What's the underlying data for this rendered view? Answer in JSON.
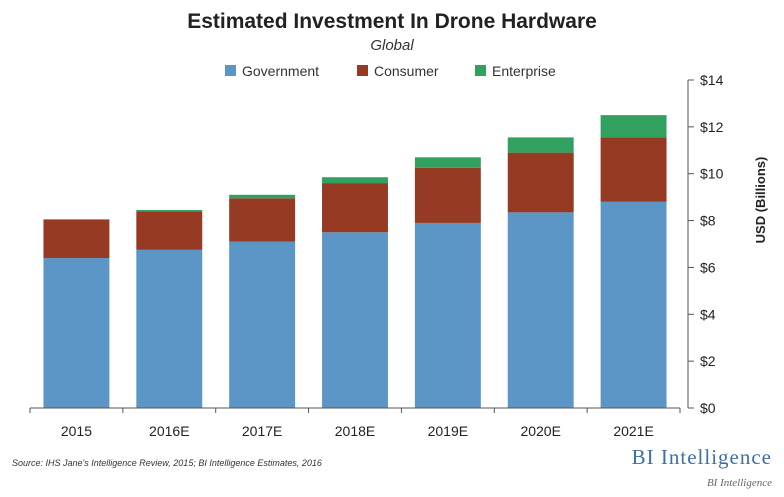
{
  "chart_data": {
    "type": "bar",
    "stacked": true,
    "title": "Estimated Investment In Drone Hardware",
    "subtitle": "Global",
    "categories": [
      "2015",
      "2016E",
      "2017E",
      "2018E",
      "2019E",
      "2020E",
      "2021E"
    ],
    "series": [
      {
        "name": "Government",
        "color": "#5b96c6",
        "values": [
          6.4,
          6.75,
          7.1,
          7.5,
          7.9,
          8.35,
          8.8
        ]
      },
      {
        "name": "Consumer",
        "color": "#963a24",
        "values": [
          1.65,
          1.65,
          1.85,
          2.1,
          2.35,
          2.55,
          2.75
        ]
      },
      {
        "name": "Enterprise",
        "color": "#32a05e",
        "values": [
          0.0,
          0.05,
          0.15,
          0.25,
          0.45,
          0.65,
          0.95
        ]
      }
    ],
    "ylabel": "USD (Billions)",
    "ylim": [
      0,
      14
    ],
    "yticks": [
      "$0",
      "$2",
      "$4",
      "$6",
      "$8",
      "$10",
      "$12",
      "$14"
    ],
    "y_axis_position": "right",
    "legend_position": "top",
    "grid": false
  },
  "source": "Source: IHS Jane's Intelligence Review, 2015; BI Intelligence Estimates, 2016",
  "brand": "BI Intelligence",
  "brand_small": "BI Intelligence"
}
